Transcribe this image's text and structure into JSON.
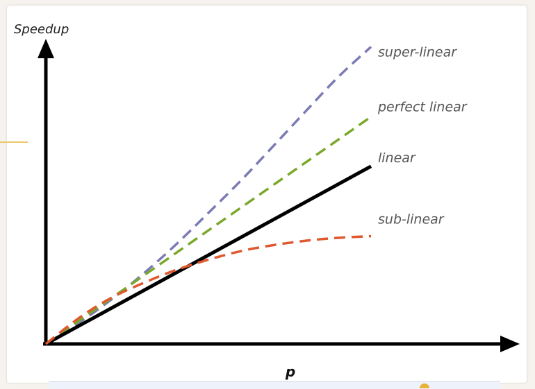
{
  "chart_data": {
    "type": "line",
    "title": "",
    "xlabel": "p",
    "ylabel": "Speedup",
    "xlim": [
      0,
      10
    ],
    "ylim": [
      0,
      10
    ],
    "grid": false,
    "legend": "inline-right",
    "series": [
      {
        "name": "super-linear",
        "style": "dashed",
        "color": "#7b7bb5",
        "x": [
          0,
          1,
          2,
          3,
          4,
          5,
          6,
          7,
          8,
          9,
          10
        ],
        "y": [
          0,
          0.7,
          1.5,
          2.4,
          3.4,
          4.5,
          5.6,
          6.8,
          8.0,
          9.2,
          10.2
        ]
      },
      {
        "name": "perfect linear",
        "style": "dashed",
        "color": "#7aa82a",
        "x": [
          0,
          10
        ],
        "y": [
          0,
          7.8
        ]
      },
      {
        "name": "linear",
        "style": "solid",
        "color": "#000000",
        "x": [
          0,
          10
        ],
        "y": [
          0,
          6.1
        ]
      },
      {
        "name": "sub-linear",
        "style": "dashed",
        "color": "#e0582e",
        "x": [
          0,
          1,
          2,
          3,
          4,
          5,
          6,
          7,
          8,
          9,
          10
        ],
        "y": [
          0,
          0.9,
          1.6,
          2.1,
          2.55,
          2.9,
          3.2,
          3.4,
          3.55,
          3.65,
          3.7
        ]
      }
    ]
  }
}
